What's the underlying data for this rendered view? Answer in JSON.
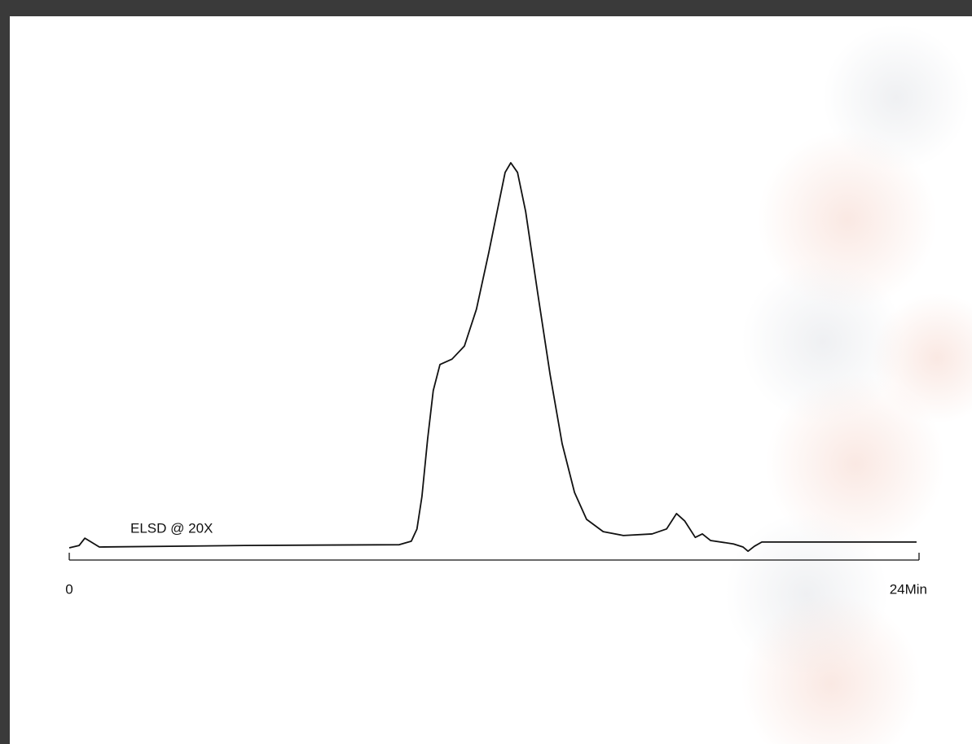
{
  "chart_data": {
    "type": "line",
    "annotations": [
      "ELSD @ 20X"
    ],
    "x": [
      0,
      0.28,
      0.44,
      0.62,
      0.85,
      4.95,
      9.32,
      9.66,
      9.82,
      9.96,
      10.12,
      10.28,
      10.47,
      10.81,
      11.16,
      11.5,
      11.85,
      12.13,
      12.31,
      12.47,
      12.66,
      12.89,
      13.23,
      13.58,
      13.92,
      14.27,
      14.61,
      15.08,
      15.65,
      16.46,
      16.87,
      17.15,
      17.38,
      17.68,
      17.88,
      18.11,
      18.76,
      19.03,
      19.17,
      19.35,
      19.56,
      19.9,
      23.93
    ],
    "values": [
      -0.2,
      0.4,
      2.3,
      1.3,
      0,
      0.4,
      0.6,
      1.5,
      4.7,
      13.1,
      28,
      40.7,
      47.5,
      48.9,
      52.3,
      61.9,
      76.7,
      89.4,
      97.5,
      100,
      97.5,
      87.3,
      66.1,
      44.9,
      26.9,
      14.2,
      7.2,
      4.0,
      3.0,
      3.4,
      4.7,
      8.7,
      6.8,
      2.5,
      3.4,
      1.7,
      0.8,
      0,
      -1.1,
      0.2,
      1.3,
      1.3,
      1.3
    ],
    "color": "#111111",
    "xlim": [
      0,
      24
    ],
    "xticks": [
      0,
      {
        "value": 24,
        "label": "24Min"
      }
    ],
    "ylim": [
      0,
      100
    ]
  }
}
